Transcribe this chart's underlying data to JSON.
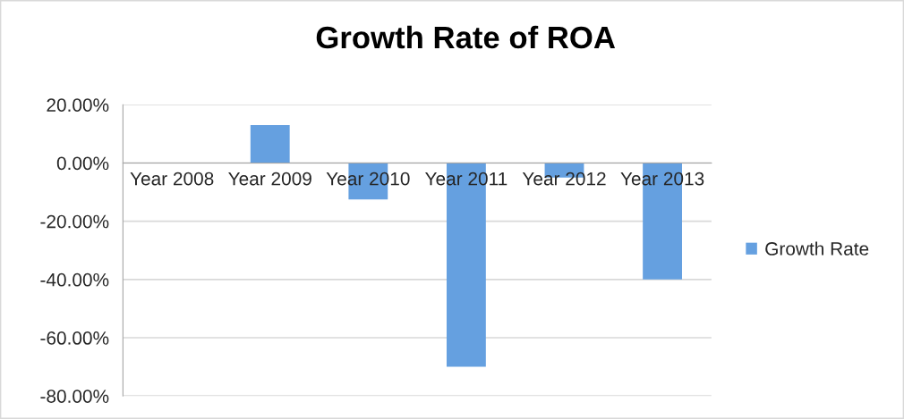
{
  "chart_data": {
    "type": "bar",
    "title": "Growth Rate of ROA",
    "categories": [
      "Year 2008",
      "Year 2009",
      "Year 2010",
      "Year 2011",
      "Year 2012",
      "Year 2013"
    ],
    "series": [
      {
        "name": "Growth Rate",
        "color": "#65a0e0",
        "values": [
          0,
          13,
          -12.5,
          -70,
          -5,
          -40
        ]
      }
    ],
    "ylim": [
      -80,
      20
    ],
    "yticks": [
      {
        "value": -80,
        "label": "-80.00%"
      },
      {
        "value": -60,
        "label": "-60.00%"
      },
      {
        "value": -40,
        "label": "-40.00%"
      },
      {
        "value": -20,
        "label": "-20.00%"
      },
      {
        "value": 0,
        "label": "0.00%"
      },
      {
        "value": 20,
        "label": "20.00%"
      }
    ],
    "grid": "y",
    "legend": "right"
  }
}
